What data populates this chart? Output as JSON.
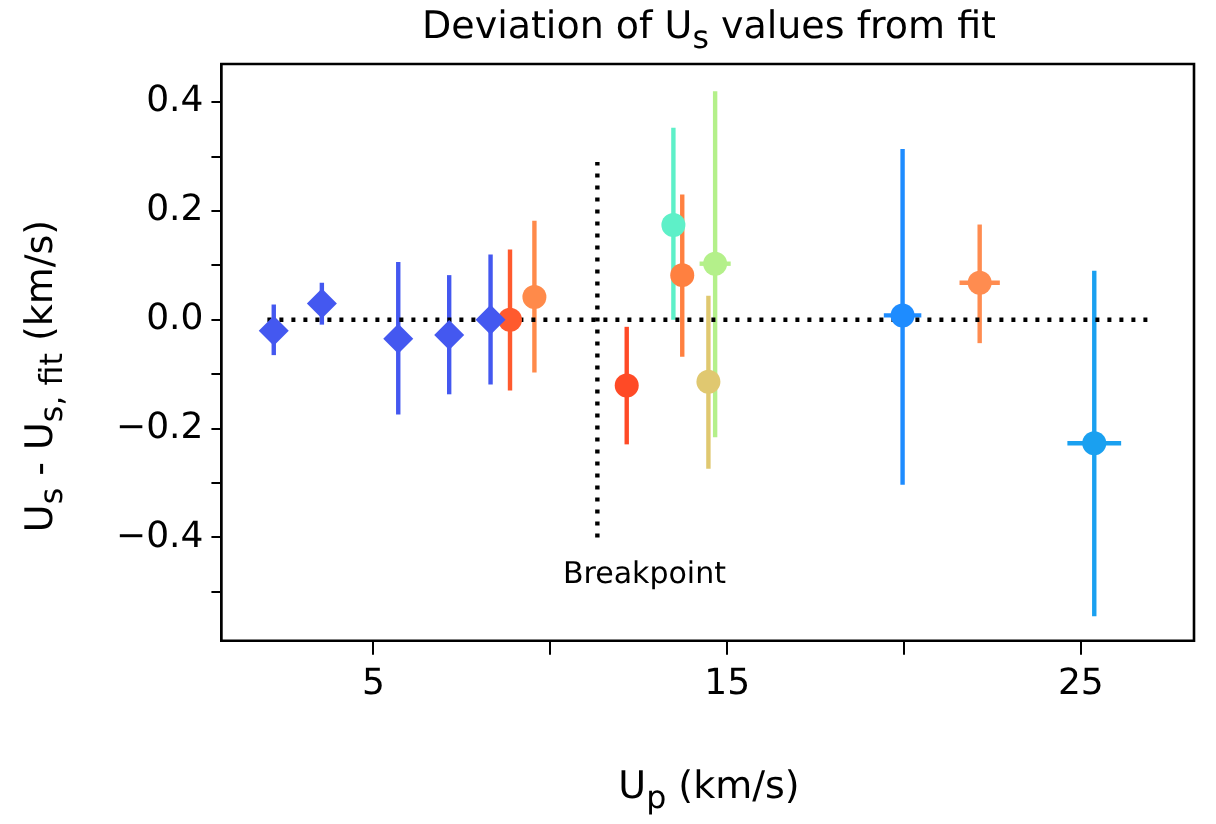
{
  "chart_data": {
    "type": "scatter",
    "title": "Deviation of U$_{s}$ values from fit",
    "xlabel": "U$_{p}$ (km/s)",
    "ylabel": "U$_{s}$ - U$_{s, fit}$ (km/s)",
    "xlim": [
      0.7,
      28.2
    ],
    "ylim": [
      -0.59,
      0.47
    ],
    "xticks": [
      {
        "value": 5,
        "label": "5"
      },
      {
        "value": 10,
        "label": null
      },
      {
        "value": 15,
        "label": "15"
      },
      {
        "value": 20,
        "label": null
      },
      {
        "value": 25,
        "label": "25"
      }
    ],
    "yticks": [
      {
        "value": -0.5,
        "label": null
      },
      {
        "value": -0.4,
        "label": "−0.4"
      },
      {
        "value": -0.3,
        "label": null
      },
      {
        "value": -0.2,
        "label": "−0.2"
      },
      {
        "value": -0.1,
        "label": null
      },
      {
        "value": 0,
        "label": "0.0"
      },
      {
        "value": 0.1,
        "label": null
      },
      {
        "value": 0.2,
        "label": "0.2"
      },
      {
        "value": 0.3,
        "label": null
      },
      {
        "value": 0.4,
        "label": "0.4"
      }
    ],
    "grid": false,
    "legend": false,
    "annotations": [
      "Breakpoint"
    ],
    "series": [
      {
        "type": "scatter",
        "marker": "diamond",
        "x": [
          2.18,
          3.54,
          5.7,
          7.14,
          8.31
        ],
        "values": [
          -0.02,
          0.03,
          -0.035,
          -0.028,
          0.0
        ],
        "colors": [
          "#4458f0",
          "#4458f0",
          "#4458f0",
          "#4458f0",
          "#4458f0"
        ],
        "errors": [
          [
            -0.065,
            0.028
          ],
          [
            -0.009,
            0.068
          ],
          [
            -0.174,
            0.106
          ],
          [
            -0.137,
            0.082
          ],
          [
            -0.119,
            0.12
          ]
        ]
      },
      {
        "type": "scatter",
        "marker": "circle",
        "x": [
          8.86,
          9.55,
          12.16,
          13.48,
          13.73,
          14.47,
          14.66,
          19.96,
          22.14,
          25.38
        ],
        "values": [
          0.0,
          0.042,
          -0.121,
          0.174,
          0.082,
          -0.114,
          0.103,
          0.008,
          0.068,
          -0.227
        ],
        "colors": [
          "#ff5a2e",
          "#ff8a4a",
          "#ff4a26",
          "#5ef0c8",
          "#ff8040",
          "#e0c870",
          "#b4f08a",
          "#1e8cff",
          "#ff8c50",
          "#1aa0f0"
        ],
        "errors": [
          [
            -0.13,
            0.129
          ],
          [
            -0.097,
            0.182
          ],
          [
            -0.229,
            -0.013
          ],
          [
            0.0,
            0.353
          ],
          [
            -0.068,
            0.23
          ],
          [
            -0.274,
            0.044
          ],
          [
            -0.216,
            0.42
          ],
          [
            -0.303,
            0.314
          ],
          [
            -0.043,
            0.175
          ],
          [
            -0.545,
            0.09
          ]
        ],
        "xerrors": [
          null,
          null,
          null,
          0.28,
          null,
          0.28,
          0.44,
          0.53,
          0.57,
          0.76
        ]
      },
      {
        "type": "line",
        "line_style": "dotted",
        "marker": "none",
        "color": "#000000",
        "x": [
          2.0,
          27.0
        ],
        "values": [
          0,
          0
        ]
      },
      {
        "type": "line",
        "line_style": "dotted",
        "marker": "none",
        "color": "#000000",
        "x": [
          11.33,
          11.33
        ],
        "values": [
          -0.4,
          0.29
        ]
      }
    ]
  }
}
